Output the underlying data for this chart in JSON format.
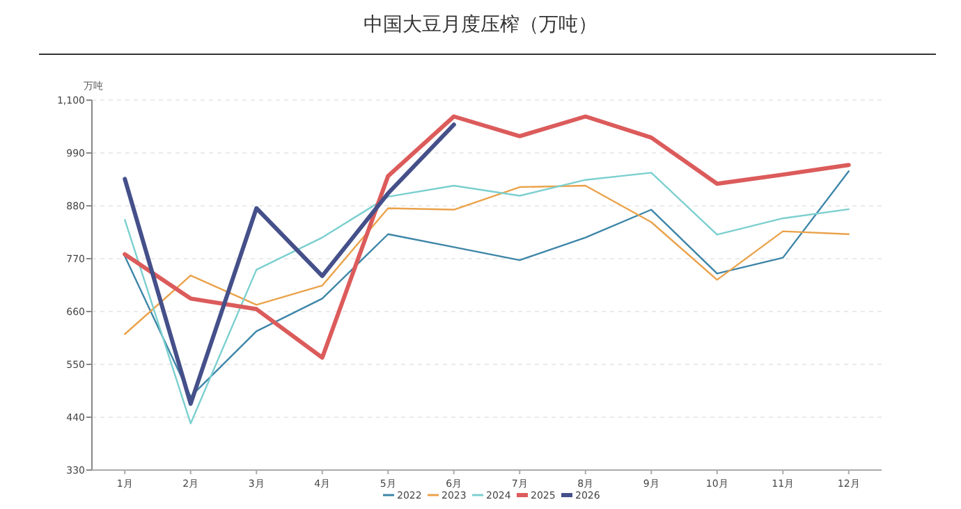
{
  "chart_data": {
    "type": "line",
    "title": "中国大豆月度压榨（万吨）",
    "ylabel": "万吨",
    "categories": [
      "1月",
      "2月",
      "3月",
      "4月",
      "5月",
      "6月",
      "7月",
      "8月",
      "9月",
      "10月",
      "11月",
      "12月"
    ],
    "series": [
      {
        "name": "2022",
        "color": "#3d85a8",
        "values": [
          775,
          483,
          619,
          687,
          821,
          794,
          767,
          814,
          872,
          739,
          772,
          952
        ]
      },
      {
        "name": "2023",
        "color": "#eaa24a",
        "values": [
          613,
          735,
          674,
          714,
          875,
          872,
          919,
          922,
          846,
          726,
          827,
          821
        ]
      },
      {
        "name": "2024",
        "color": "#7ccfcf",
        "values": [
          851,
          427,
          747,
          814,
          899,
          922,
          901,
          934,
          949,
          820,
          854,
          873
        ]
      },
      {
        "name": "2025",
        "color": "#dc5b5b",
        "values": [
          779,
          687,
          665,
          564,
          942,
          1066,
          1025,
          1066,
          1022,
          926,
          945,
          965
        ]
      },
      {
        "name": "2026",
        "color": "#45508a",
        "values": [
          936,
          468,
          875,
          734,
          906,
          1049,
          null,
          null,
          null,
          null,
          null,
          null
        ]
      }
    ],
    "ylim": [
      330,
      1100
    ],
    "yticks": [
      330,
      440,
      550,
      660,
      770,
      880,
      990,
      {
        "value": 1100,
        "label": "1,100"
      }
    ],
    "grid": "y",
    "legend": "bottom",
    "marker": "none",
    "line_style": "solid"
  }
}
